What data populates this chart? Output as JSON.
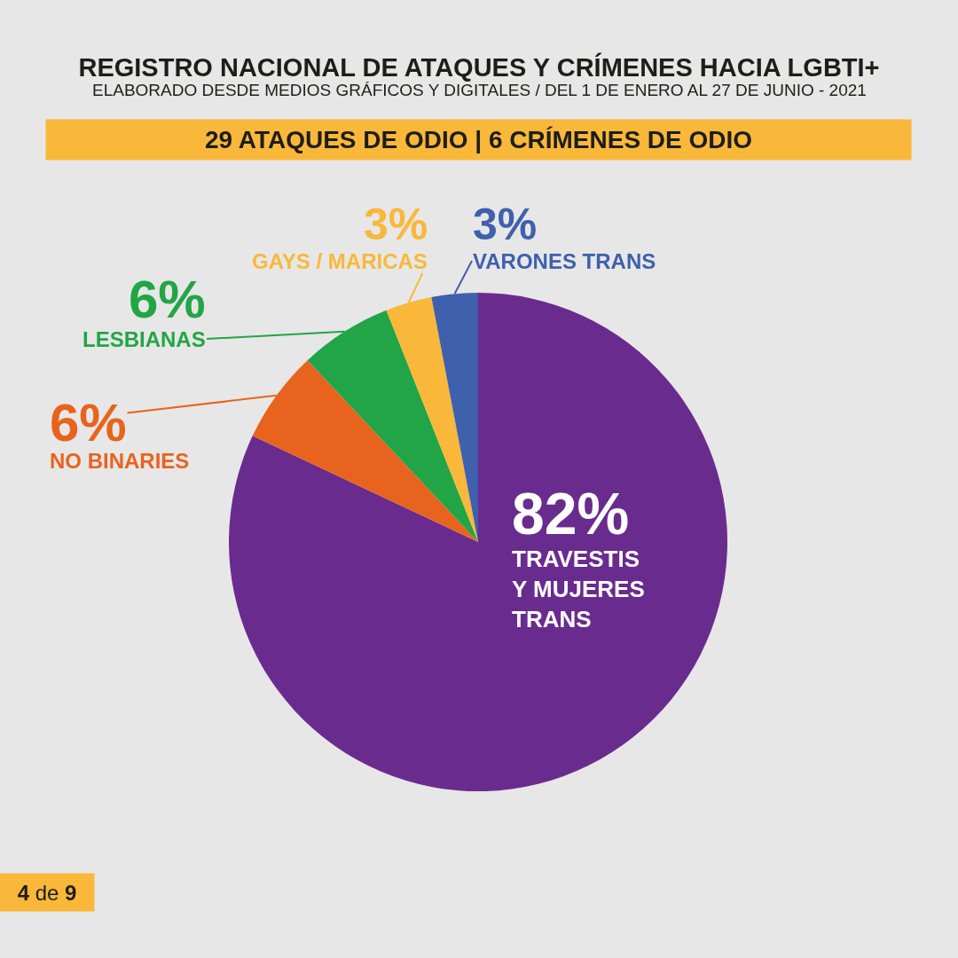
{
  "chart_data": {
    "type": "pie",
    "title": "REGISTRO NACIONAL DE ATAQUES Y CRÍMENES HACIA LGBTI+",
    "subtitle": "ELABORADO DESDE MEDIOS GRÁFICOS Y DIGITALES / DEL 1 DE ENERO AL 27 DE JUNIO - 2021",
    "categories": [
      "TRAVESTIS Y MUJERES TRANS",
      "NO BINARIES",
      "LESBIANAS",
      "GAYS / MARICAS",
      "VARONES TRANS"
    ],
    "values": [
      82,
      6,
      6,
      3,
      3
    ],
    "colors": [
      "#6a2b8e",
      "#e8641e",
      "#22a547",
      "#f9b83a",
      "#3f60ad"
    ],
    "value_labels": [
      "82%",
      "6%",
      "6%",
      "3%",
      "3%"
    ],
    "annotations": [
      "29 ATAQUES DE ODIO | 6 CRÍMENES DE ODIO",
      "4 de 9"
    ]
  }
}
